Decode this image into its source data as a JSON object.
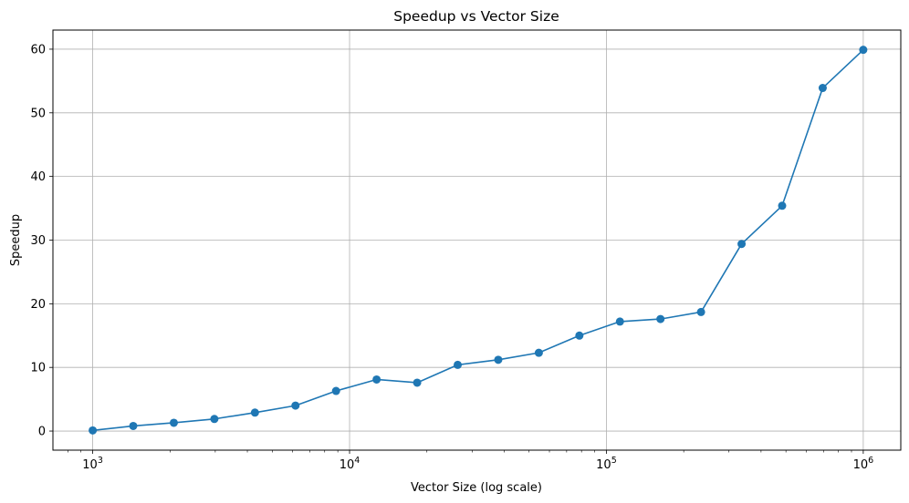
{
  "chart_data": {
    "type": "line",
    "title": "Speedup vs Vector Size",
    "xlabel": "Vector Size (log scale)",
    "ylabel": "Speedup",
    "x_scale": "log",
    "xlim": [
      700,
      1400000
    ],
    "ylim": [
      -3,
      63
    ],
    "grid": true,
    "marker": "circle",
    "x_ticks": [
      {
        "value": 1000,
        "base": "10",
        "exp": "3"
      },
      {
        "value": 10000,
        "base": "10",
        "exp": "4"
      },
      {
        "value": 100000,
        "base": "10",
        "exp": "5"
      },
      {
        "value": 1000000,
        "base": "10",
        "exp": "6"
      }
    ],
    "y_ticks": [
      {
        "value": 0,
        "label": "0"
      },
      {
        "value": 10,
        "label": "10"
      },
      {
        "value": 20,
        "label": "20"
      },
      {
        "value": 30,
        "label": "30"
      },
      {
        "value": 40,
        "label": "40"
      },
      {
        "value": 50,
        "label": "50"
      },
      {
        "value": 60,
        "label": "60"
      }
    ],
    "series": [
      {
        "color": "#1f77b4",
        "x": [
          1000,
          1438,
          2069,
          2976,
          4281,
          6158,
          8859,
          12743,
          18330,
          26367,
          37927,
          54556,
          78476,
          112884,
          162378,
          233572,
          335982,
          483293,
          695193,
          1000000
        ],
        "y": [
          0.1,
          0.8,
          1.3,
          1.9,
          2.9,
          4.0,
          6.3,
          8.1,
          7.6,
          10.4,
          11.2,
          12.3,
          15.0,
          17.2,
          17.6,
          18.7,
          29.4,
          35.4,
          53.9,
          59.9
        ]
      }
    ]
  }
}
